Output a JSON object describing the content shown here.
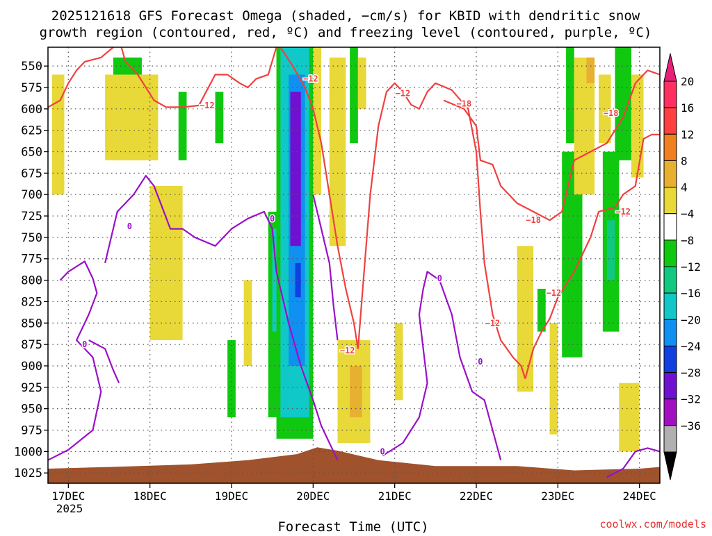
{
  "chart_data": {
    "type": "heatmap",
    "title_line1": "2025121618 GFS Forecast Omega (shaded, −cm/s) for KBID with dendritic snow",
    "title_line2": "growth region (contoured, red, ºC) and freezing level (contoured, purple, ºC)",
    "xlabel": "Forecast Time (UTC)",
    "x_year_label": "2025",
    "credit": "coolwx.com/models",
    "x_ticks": [
      {
        "label": "17DEC",
        "day": 0
      },
      {
        "label": "18DEC",
        "day": 1
      },
      {
        "label": "19DEC",
        "day": 2
      },
      {
        "label": "20DEC",
        "day": 3
      },
      {
        "label": "21DEC",
        "day": 4
      },
      {
        "label": "22DEC",
        "day": 5
      },
      {
        "label": "23DEC",
        "day": 6
      },
      {
        "label": "24DEC",
        "day": 7
      }
    ],
    "x_range_days": [
      -0.25,
      7.25
    ],
    "y_ticks": [
      550,
      575,
      600,
      625,
      650,
      675,
      700,
      725,
      750,
      775,
      800,
      825,
      850,
      875,
      900,
      925,
      950,
      975,
      1000,
      1025
    ],
    "y_range_hpa": [
      528,
      1037
    ],
    "colorbar": {
      "labels": [
        "20",
        "16",
        "12",
        "8",
        "4",
        "−4",
        "−8",
        "−12",
        "−16",
        "−20",
        "−24",
        "−28",
        "−32",
        "−36"
      ],
      "colors": [
        "#ff3060",
        "#ff4040",
        "#f08020",
        "#e8b030",
        "#e8d838",
        "#ffffff",
        "#10c810",
        "#10c880",
        "#10c8c8",
        "#1090f0",
        "#1040e0",
        "#7010d0",
        "#a010c0",
        "#b0b0b0"
      ],
      "top_arrow_color": "#e8207a",
      "bottom_arrow_color": "#000000"
    },
    "contour_labels": {
      "freezing": "0",
      "m12": "−12",
      "m18": "−18"
    },
    "terrain_color": "#a0522d",
    "terrain_profile": [
      [
        -0.25,
        1020
      ],
      [
        0.5,
        1018
      ],
      [
        1.5,
        1015
      ],
      [
        2.2,
        1010
      ],
      [
        2.8,
        1003
      ],
      [
        3.05,
        995
      ],
      [
        3.3,
        999
      ],
      [
        3.8,
        1010
      ],
      [
        4.5,
        1017
      ],
      [
        5.5,
        1017
      ],
      [
        6.2,
        1022
      ],
      [
        7.0,
        1020
      ],
      [
        7.25,
        1018
      ]
    ],
    "omega_shading": [
      {
        "t0": 2.45,
        "t1": 2.65,
        "p0": 720,
        "p1": 960,
        "color": "#10c810"
      },
      {
        "t0": 2.5,
        "t1": 2.6,
        "p0": 740,
        "p1": 860,
        "color": "#10c8c8"
      },
      {
        "t0": 2.55,
        "t1": 3.0,
        "p0": 528,
        "p1": 985,
        "color": "#10c810"
      },
      {
        "t0": 2.6,
        "t1": 2.95,
        "p0": 528,
        "p1": 960,
        "color": "#10c8c8"
      },
      {
        "t0": 2.7,
        "t1": 2.9,
        "p0": 560,
        "p1": 900,
        "color": "#1090f0"
      },
      {
        "t0": 2.72,
        "t1": 2.85,
        "p0": 580,
        "p1": 760,
        "color": "#7010d0"
      },
      {
        "t0": 2.78,
        "t1": 2.85,
        "p0": 780,
        "p1": 820,
        "color": "#1040e0"
      },
      {
        "t0": 3.0,
        "t1": 3.1,
        "p0": 528,
        "p1": 700,
        "color": "#e8d838"
      },
      {
        "t0": 3.2,
        "t1": 3.4,
        "p0": 540,
        "p1": 760,
        "color": "#e8d838"
      },
      {
        "t0": 3.3,
        "t1": 3.7,
        "p0": 870,
        "p1": 990,
        "color": "#e8d838"
      },
      {
        "t0": 3.45,
        "t1": 3.6,
        "p0": 900,
        "p1": 960,
        "color": "#e8b030"
      },
      {
        "t0": 3.45,
        "t1": 3.55,
        "p0": 528,
        "p1": 640,
        "color": "#10c810"
      },
      {
        "t0": 3.55,
        "t1": 3.65,
        "p0": 540,
        "p1": 600,
        "color": "#e8d838"
      },
      {
        "t0": 4.0,
        "t1": 4.1,
        "p0": 850,
        "p1": 940,
        "color": "#e8d838"
      },
      {
        "t0": 5.5,
        "t1": 5.7,
        "p0": 760,
        "p1": 930,
        "color": "#e8d838"
      },
      {
        "t0": 5.75,
        "t1": 5.85,
        "p0": 810,
        "p1": 860,
        "color": "#10c810"
      },
      {
        "t0": 5.9,
        "t1": 6.0,
        "p0": 850,
        "p1": 980,
        "color": "#e8d838"
      },
      {
        "t0": 6.05,
        "t1": 6.3,
        "p0": 650,
        "p1": 890,
        "color": "#10c810"
      },
      {
        "t0": 6.1,
        "t1": 6.2,
        "p0": 528,
        "p1": 640,
        "color": "#10c810"
      },
      {
        "t0": 6.2,
        "t1": 6.45,
        "p0": 540,
        "p1": 700,
        "color": "#e8d838"
      },
      {
        "t0": 6.35,
        "t1": 6.45,
        "p0": 540,
        "p1": 570,
        "color": "#e8b030"
      },
      {
        "t0": 6.5,
        "t1": 6.65,
        "p0": 560,
        "p1": 640,
        "color": "#e8d838"
      },
      {
        "t0": 6.55,
        "t1": 6.75,
        "p0": 650,
        "p1": 860,
        "color": "#10c810"
      },
      {
        "t0": 6.6,
        "t1": 6.7,
        "p0": 730,
        "p1": 800,
        "color": "#10c880"
      },
      {
        "t0": 6.7,
        "t1": 6.9,
        "p0": 528,
        "p1": 660,
        "color": "#10c810"
      },
      {
        "t0": 6.9,
        "t1": 7.05,
        "p0": 560,
        "p1": 680,
        "color": "#e8d838"
      },
      {
        "t0": 6.75,
        "t1": 7.0,
        "p0": 920,
        "p1": 1000,
        "color": "#e8d838"
      },
      {
        "t0": 1.1,
        "t1": 1.3,
        "p0": 720,
        "p1": 820,
        "color": "#e8b030"
      },
      {
        "t0": 1.0,
        "t1": 1.4,
        "p0": 690,
        "p1": 870,
        "color": "#e8d838"
      },
      {
        "t0": 0.55,
        "t1": 0.9,
        "p0": 540,
        "p1": 600,
        "color": "#10c810"
      },
      {
        "t0": 0.45,
        "t1": 1.1,
        "p0": 560,
        "p1": 660,
        "color": "#e8d838"
      },
      {
        "t0": -0.2,
        "t1": -0.05,
        "p0": 560,
        "p1": 700,
        "color": "#e8d838"
      },
      {
        "t0": 1.35,
        "t1": 1.45,
        "p0": 580,
        "p1": 660,
        "color": "#10c810"
      },
      {
        "t0": 1.8,
        "t1": 1.9,
        "p0": 580,
        "p1": 640,
        "color": "#10c810"
      },
      {
        "t0": 1.95,
        "t1": 2.05,
        "p0": 870,
        "p1": 960,
        "color": "#10c810"
      },
      {
        "t0": 2.15,
        "t1": 2.25,
        "p0": 800,
        "p1": 900,
        "color": "#e8d838"
      }
    ],
    "contours": [
      {
        "kind": "freezing",
        "color": "#9a10c8",
        "points": [
          [
            -0.1,
            800
          ],
          [
            0.0,
            790
          ],
          [
            0.2,
            778
          ],
          [
            0.3,
            798
          ],
          [
            0.35,
            815
          ],
          [
            0.25,
            840
          ],
          [
            0.1,
            870
          ],
          [
            0.3,
            890
          ],
          [
            0.4,
            930
          ],
          [
            0.3,
            975
          ],
          [
            0.0,
            998
          ],
          [
            -0.25,
            1010
          ]
        ]
      },
      {
        "kind": "freezing",
        "color": "#9a10c8",
        "points": [
          [
            0.25,
            870
          ],
          [
            0.45,
            880
          ],
          [
            0.55,
            905
          ],
          [
            0.62,
            920
          ]
        ]
      },
      {
        "kind": "freezing",
        "color": "#9a10c8",
        "points": [
          [
            0.45,
            780
          ],
          [
            0.6,
            720
          ],
          [
            0.8,
            700
          ],
          [
            0.95,
            678
          ],
          [
            1.05,
            690
          ],
          [
            1.15,
            715
          ],
          [
            1.25,
            740
          ],
          [
            1.4,
            740
          ],
          [
            1.55,
            750
          ],
          [
            1.8,
            760
          ],
          [
            2.0,
            740
          ],
          [
            2.2,
            728
          ],
          [
            2.4,
            720
          ],
          [
            2.5,
            740
          ],
          [
            2.55,
            790
          ],
          [
            2.7,
            850
          ],
          [
            2.85,
            900
          ],
          [
            3.0,
            940
          ],
          [
            3.1,
            970
          ],
          [
            3.3,
            1010
          ]
        ]
      },
      {
        "kind": "freezing",
        "color": "#9a10c8",
        "points": [
          [
            3.0,
            700
          ],
          [
            3.1,
            740
          ],
          [
            3.2,
            780
          ],
          [
            3.25,
            830
          ],
          [
            3.3,
            870
          ]
        ]
      },
      {
        "kind": "freezing",
        "color": "#9a10c8",
        "points": [
          [
            3.85,
            1005
          ],
          [
            4.1,
            990
          ],
          [
            4.3,
            960
          ],
          [
            4.4,
            920
          ],
          [
            4.35,
            880
          ],
          [
            4.3,
            840
          ],
          [
            4.35,
            810
          ],
          [
            4.4,
            790
          ],
          [
            4.55,
            800
          ],
          [
            4.7,
            840
          ],
          [
            4.8,
            890
          ],
          [
            4.95,
            930
          ],
          [
            5.1,
            940
          ],
          [
            5.2,
            975
          ],
          [
            5.3,
            1010
          ]
        ]
      },
      {
        "kind": "freezing",
        "color": "#9a10c8",
        "points": [
          [
            6.6,
            1030
          ],
          [
            6.8,
            1020
          ],
          [
            6.95,
            1000
          ],
          [
            7.1,
            996
          ],
          [
            7.25,
            1000
          ]
        ]
      },
      {
        "kind": "m12",
        "color": "#f04040",
        "points": [
          [
            -0.25,
            598
          ],
          [
            -0.1,
            590
          ],
          [
            0.0,
            570
          ],
          [
            0.1,
            555
          ],
          [
            0.2,
            545
          ],
          [
            0.4,
            540
          ],
          [
            0.55,
            528
          ]
        ]
      },
      {
        "kind": "m12",
        "color": "#f04040",
        "points": [
          [
            0.65,
            528
          ],
          [
            0.7,
            545
          ],
          [
            0.85,
            560
          ],
          [
            0.95,
            575
          ],
          [
            1.05,
            590
          ],
          [
            1.2,
            598
          ],
          [
            1.4,
            598
          ],
          [
            1.6,
            596
          ],
          [
            1.7,
            578
          ],
          [
            1.8,
            560
          ],
          [
            1.95,
            560
          ],
          [
            2.1,
            570
          ],
          [
            2.2,
            575
          ],
          [
            2.3,
            565
          ],
          [
            2.45,
            560
          ],
          [
            2.55,
            528
          ]
        ]
      },
      {
        "kind": "m12",
        "color": "#f04040",
        "points": [
          [
            2.6,
            528
          ],
          [
            2.75,
            550
          ],
          [
            2.9,
            575
          ],
          [
            3.0,
            600
          ],
          [
            3.1,
            640
          ],
          [
            3.2,
            700
          ],
          [
            3.3,
            760
          ],
          [
            3.4,
            810
          ],
          [
            3.5,
            850
          ],
          [
            3.55,
            880
          ]
        ]
      },
      {
        "kind": "m12",
        "color": "#f04040",
        "points": [
          [
            3.55,
            880
          ],
          [
            3.6,
            820
          ],
          [
            3.7,
            700
          ],
          [
            3.8,
            620
          ],
          [
            3.9,
            580
          ],
          [
            4.0,
            570
          ],
          [
            4.1,
            580
          ],
          [
            4.2,
            595
          ],
          [
            4.3,
            600
          ],
          [
            4.4,
            580
          ],
          [
            4.5,
            570
          ],
          [
            4.7,
            578
          ],
          [
            4.9,
            600
          ],
          [
            5.0,
            650
          ],
          [
            5.05,
            720
          ],
          [
            5.1,
            780
          ],
          [
            5.2,
            840
          ],
          [
            5.3,
            870
          ],
          [
            5.45,
            890
          ],
          [
            5.55,
            900
          ],
          [
            5.6,
            915
          ]
        ]
      },
      {
        "kind": "m12",
        "color": "#f04040",
        "points": [
          [
            5.6,
            915
          ],
          [
            5.7,
            880
          ],
          [
            5.8,
            860
          ],
          [
            5.9,
            845
          ],
          [
            6.0,
            820
          ],
          [
            6.2,
            790
          ],
          [
            6.4,
            750
          ],
          [
            6.5,
            720
          ],
          [
            6.7,
            715
          ],
          [
            6.8,
            700
          ],
          [
            6.95,
            690
          ],
          [
            7.05,
            635
          ],
          [
            7.15,
            630
          ],
          [
            7.25,
            630
          ]
        ]
      },
      {
        "kind": "m18",
        "color": "#f04040",
        "points": [
          [
            4.6,
            590
          ],
          [
            4.85,
            600
          ],
          [
            5.0,
            620
          ],
          [
            5.05,
            660
          ],
          [
            5.2,
            665
          ],
          [
            5.3,
            690
          ],
          [
            5.5,
            710
          ],
          [
            5.7,
            720
          ],
          [
            5.9,
            730
          ],
          [
            6.05,
            720
          ],
          [
            6.2,
            660
          ],
          [
            6.4,
            650
          ],
          [
            6.6,
            640
          ],
          [
            6.8,
            610
          ],
          [
            6.95,
            570
          ],
          [
            7.1,
            555
          ],
          [
            7.25,
            560
          ]
        ]
      }
    ],
    "label_positions": [
      {
        "kind": "m12",
        "t": 2.97,
        "p": 565
      },
      {
        "kind": "m12",
        "t": 1.7,
        "p": 596
      },
      {
        "kind": "m12",
        "t": 4.1,
        "p": 582
      },
      {
        "kind": "m18",
        "t": 4.85,
        "p": 594
      },
      {
        "kind": "m12",
        "t": 3.42,
        "p": 882
      },
      {
        "kind": "m18",
        "t": 6.65,
        "p": 605
      },
      {
        "kind": "m12",
        "t": 6.8,
        "p": 720
      },
      {
        "kind": "m18",
        "t": 5.7,
        "p": 730
      },
      {
        "kind": "m12",
        "t": 5.95,
        "p": 815
      },
      {
        "kind": "m12",
        "t": 5.2,
        "p": 850
      },
      {
        "kind": "freezing",
        "t": 2.5,
        "p": 728
      },
      {
        "kind": "freezing",
        "t": 0.2,
        "p": 875
      },
      {
        "kind": "freezing",
        "t": 0.75,
        "p": 737
      },
      {
        "kind": "freezing",
        "t": 4.55,
        "p": 798
      },
      {
        "kind": "freezing",
        "t": 3.85,
        "p": 1000
      },
      {
        "kind": "freezing",
        "t": 5.05,
        "p": 895
      }
    ]
  }
}
